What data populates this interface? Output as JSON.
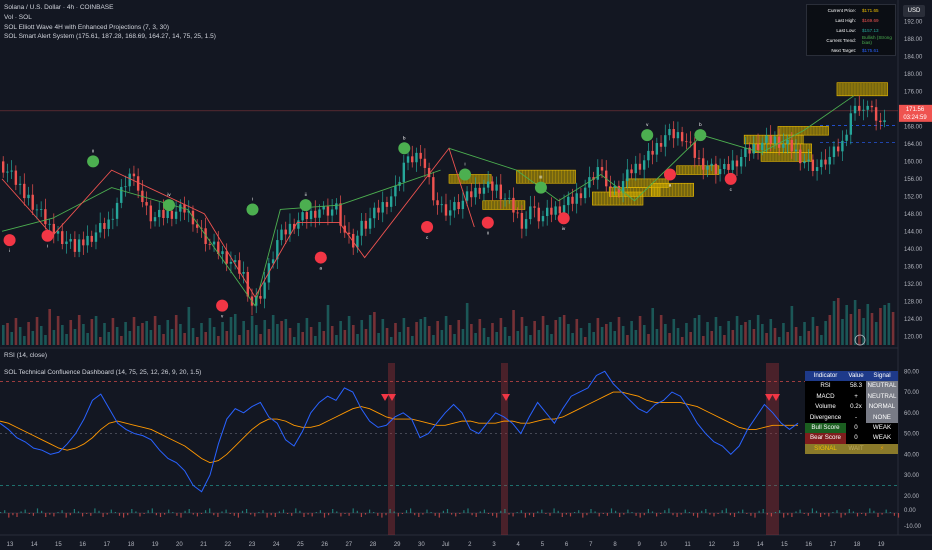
{
  "legend": {
    "symbol": "Solana / U.S. Dollar · 4h · COINBASE",
    "vol": "Vol · SOL",
    "ind1": "SOL Elliott Wave 4H with Enhanced Projections (7, 3, 30)",
    "ind2": "SOL Smart Alert System (175.61, 187.28, 168.69, 164.27, 14, 75, 25, 1.5)",
    "rsi": "RSI (14, close)",
    "dash": "SOL Technical Confluence Dashboard (14, 75, 25, 12, 26, 9, 20, 1.5)"
  },
  "currency": "USD",
  "info_box": [
    {
      "key": "Current Price:",
      "value": "$171.65",
      "color": "#f0c000"
    },
    {
      "key": "Last High:",
      "value": "$169.69",
      "color": "#ef5350"
    },
    {
      "key": "Last Low:",
      "value": "$157.13",
      "color": "#26a69a"
    },
    {
      "key": "Current Trend:",
      "value": "Bullish (Strong bias)",
      "color": "#4caf50"
    },
    {
      "key": "Next Target:",
      "value": "$175.61",
      "color": "#2962ff"
    }
  ],
  "price_tags": {
    "price": "171.56",
    "countdown": "03:24:59"
  },
  "dashboard": {
    "header": [
      "Indicator",
      "Value",
      "Signal"
    ],
    "rows": [
      {
        "label": "RSI",
        "value": "58.3",
        "signal": "NEUTRAL",
        "labelBg": "#000000",
        "sigBg": "#787b86"
      },
      {
        "label": "MACD",
        "value": "+",
        "signal": "NEUTRAL",
        "labelBg": "#000000",
        "sigBg": "#787b86"
      },
      {
        "label": "Volume",
        "value": "0.2x",
        "signal": "NORMAL",
        "labelBg": "#000000",
        "sigBg": "#787b86"
      },
      {
        "label": "Divergence",
        "value": "-",
        "signal": "NONE",
        "labelBg": "#000000",
        "sigBg": "#787b86"
      },
      {
        "label": "Bull Score",
        "value": "0",
        "signal": "WEAK",
        "labelBg": "#1b5e20",
        "sigBg": "#000000"
      },
      {
        "label": "Bear Score",
        "value": "0",
        "signal": "WEAK",
        "labelBg": "#7f1d1d",
        "sigBg": "#000000"
      },
      {
        "label": "SIGNAL",
        "value": "WAIT",
        "signal": "⚡",
        "labelBg": "#8a7a2a",
        "sigBg": "#8a7a2a"
      }
    ]
  },
  "chart_data": {
    "type": "line",
    "price_axis": {
      "ylim": [
        118,
        196
      ],
      "ticks": [
        "120.00",
        "124.00",
        "128.00",
        "132.00",
        "136.00",
        "140.00",
        "144.00",
        "148.00",
        "152.00",
        "156.00",
        "160.00",
        "164.00",
        "168.00",
        "172.00",
        "176.00",
        "180.00",
        "184.00",
        "188.00",
        "192.00"
      ]
    },
    "rsi_axis": {
      "ylim": [
        18,
        84
      ],
      "ticks": [
        "20.00",
        "30.00",
        "40.00",
        "50.00",
        "60.00",
        "70.00",
        "80.00"
      ],
      "overbought": 75,
      "oversold": 25
    },
    "hist_axis": {
      "ticks": [
        "0.00",
        "-10.00"
      ]
    },
    "x_labels": [
      "13",
      "14",
      "15",
      "16",
      "17",
      "18",
      "19",
      "20",
      "21",
      "22",
      "23",
      "24",
      "25",
      "26",
      "27",
      "28",
      "29",
      "30",
      "Jul",
      "2",
      "3",
      "4",
      "5",
      "6",
      "7",
      "8",
      "9",
      "10",
      "11",
      "12",
      "13",
      "14",
      "15",
      "16",
      "17",
      "18",
      "19"
    ],
    "price_path": [
      [
        0,
        160
      ],
      [
        3,
        153
      ],
      [
        6,
        145
      ],
      [
        9,
        140
      ],
      [
        11,
        143
      ],
      [
        13,
        146
      ],
      [
        15,
        155
      ],
      [
        16,
        158
      ],
      [
        17,
        150
      ],
      [
        18,
        147
      ],
      [
        20,
        148
      ],
      [
        22,
        149
      ],
      [
        23,
        147
      ],
      [
        25,
        141
      ],
      [
        27,
        138
      ],
      [
        29,
        134
      ],
      [
        30,
        127
      ],
      [
        31,
        130
      ],
      [
        33,
        142
      ],
      [
        35,
        146
      ],
      [
        37,
        148
      ],
      [
        38,
        149
      ],
      [
        40,
        149
      ],
      [
        41,
        143
      ],
      [
        42,
        141
      ],
      [
        43,
        145
      ],
      [
        45,
        149
      ],
      [
        47,
        153
      ],
      [
        48,
        159
      ],
      [
        50,
        162
      ],
      [
        51,
        155
      ],
      [
        52,
        150
      ],
      [
        53,
        149
      ],
      [
        55,
        151
      ],
      [
        57,
        154
      ],
      [
        59,
        154
      ],
      [
        61,
        149
      ],
      [
        62,
        146
      ],
      [
        63,
        149
      ],
      [
        64,
        147
      ],
      [
        66,
        149
      ],
      [
        68,
        151
      ],
      [
        70,
        155
      ],
      [
        71,
        158
      ],
      [
        72,
        155
      ],
      [
        73,
        153
      ],
      [
        75,
        158
      ],
      [
        77,
        161
      ],
      [
        79,
        166
      ],
      [
        81,
        166
      ],
      [
        83,
        160
      ],
      [
        84,
        159
      ],
      [
        86,
        158
      ],
      [
        88,
        161
      ],
      [
        90,
        164
      ],
      [
        92,
        165
      ],
      [
        94,
        163
      ],
      [
        96,
        159
      ],
      [
        97,
        158
      ],
      [
        98,
        160
      ],
      [
        100,
        164
      ],
      [
        101,
        171
      ],
      [
        102,
        173
      ],
      [
        103,
        172
      ],
      [
        104,
        170
      ],
      [
        105,
        168
      ]
    ],
    "ew_lines": [
      [
        [
          0,
          144
        ],
        [
          6,
          147
        ],
        [
          13,
          154
        ],
        [
          22,
          149
        ],
        [
          30,
          127
        ],
        [
          33,
          149
        ],
        [
          40,
          150
        ],
        [
          52,
          158
        ]
      ],
      [
        [
          0,
          156
        ],
        [
          6,
          143
        ],
        [
          13,
          158
        ],
        [
          24,
          148
        ],
        [
          30,
          129
        ],
        [
          35,
          146
        ],
        [
          40,
          146
        ],
        [
          43,
          138
        ],
        [
          53,
          163
        ],
        [
          56,
          145
        ]
      ],
      [
        [
          53,
          163
        ],
        [
          61,
          158
        ],
        [
          66,
          151
        ],
        [
          71,
          157
        ],
        [
          75,
          151
        ],
        [
          83,
          166
        ],
        [
          90,
          162
        ],
        [
          95,
          167
        ],
        [
          101,
          175
        ]
      ]
    ],
    "wave_points": [
      {
        "i": 1,
        "y": 142,
        "c": "#f23645",
        "lbl": "i"
      },
      {
        "i": 6,
        "y": 143,
        "c": "#f23645",
        "lbl": "i"
      },
      {
        "i": 12,
        "y": 160,
        "c": "#4caf50",
        "lbl": "ii"
      },
      {
        "i": 22,
        "y": 150,
        "c": "#4caf50",
        "lbl": "iv"
      },
      {
        "i": 29,
        "y": 127,
        "c": "#f23645",
        "lbl": "v"
      },
      {
        "i": 33,
        "y": 149,
        "c": "#4caf50",
        "lbl": "i"
      },
      {
        "i": 40,
        "y": 150,
        "c": "#4caf50",
        "lbl": "ii"
      },
      {
        "i": 42,
        "y": 138,
        "c": "#f23645",
        "lbl": "a"
      },
      {
        "i": 53,
        "y": 163,
        "c": "#4caf50",
        "lbl": "b"
      },
      {
        "i": 56,
        "y": 145,
        "c": "#f23645",
        "lbl": "c"
      },
      {
        "i": 61,
        "y": 157,
        "c": "#4caf50",
        "lbl": "i"
      },
      {
        "i": 64,
        "y": 146,
        "c": "#f23645",
        "lbl": "ii"
      },
      {
        "i": 71,
        "y": 154,
        "c": "#4caf50",
        "lbl": "iii"
      },
      {
        "i": 74,
        "y": 147,
        "c": "#f23645",
        "lbl": "iv"
      },
      {
        "i": 85,
        "y": 166,
        "c": "#4caf50",
        "lbl": "v"
      },
      {
        "i": 88,
        "y": 157,
        "c": "#f23645",
        "lbl": "a"
      },
      {
        "i": 92,
        "y": 166,
        "c": "#4caf50",
        "lbl": "b"
      },
      {
        "i": 96,
        "y": 156,
        "c": "#f23645",
        "lbl": "c"
      }
    ],
    "zones": [
      [
        53,
        155,
        58,
        157
      ],
      [
        57,
        149,
        62,
        151
      ],
      [
        61,
        155,
        68,
        158
      ],
      [
        70,
        150,
        76,
        153
      ],
      [
        72,
        152,
        78,
        154
      ],
      [
        74,
        154,
        79,
        156
      ],
      [
        77,
        152,
        82,
        155
      ],
      [
        80,
        157,
        85,
        159
      ],
      [
        88,
        164,
        95,
        166
      ],
      [
        89,
        162,
        96,
        164
      ],
      [
        90,
        160,
        96,
        162
      ],
      [
        92,
        166,
        98,
        168
      ],
      [
        99,
        175,
        105,
        178
      ]
    ],
    "rsi": [
      55,
      52,
      48,
      46,
      43,
      42,
      40,
      41,
      45,
      50,
      57,
      66,
      69,
      62,
      55,
      52,
      50,
      49,
      47,
      42,
      38,
      36,
      32,
      25,
      22,
      30,
      45,
      57,
      62,
      60,
      63,
      65,
      58,
      55,
      47,
      44,
      51,
      60,
      65,
      68,
      66,
      72,
      70,
      62,
      56,
      53,
      54,
      58,
      60,
      57,
      48,
      50,
      55,
      60,
      64,
      60,
      52,
      50,
      55,
      60,
      58,
      55,
      50,
      58,
      65,
      60,
      55,
      62,
      68,
      70,
      72,
      78,
      80,
      74,
      70,
      66,
      62,
      60,
      64,
      66,
      70,
      68,
      62,
      55,
      50,
      46,
      44,
      40,
      44,
      52,
      58,
      64,
      60,
      55,
      52,
      55
    ],
    "rsi_ma": [
      56,
      55,
      53,
      51,
      49,
      47,
      45,
      43,
      42,
      43,
      45,
      48,
      52,
      55,
      56,
      55,
      54,
      53,
      52,
      50,
      48,
      46,
      44,
      41,
      38,
      36,
      37,
      40,
      44,
      48,
      52,
      55,
      57,
      57,
      56,
      54,
      53,
      53,
      54,
      56,
      58,
      60,
      62,
      63,
      62,
      60,
      58,
      57,
      57,
      57,
      56,
      55,
      54,
      54,
      55,
      56,
      56,
      55,
      55,
      55,
      56,
      56,
      55,
      55,
      56,
      57,
      57,
      58,
      60,
      62,
      64,
      66,
      68,
      70,
      70,
      69,
      68,
      66,
      65,
      65,
      65,
      65,
      64,
      63,
      61,
      59,
      57,
      55,
      53,
      52,
      52,
      53,
      54,
      54,
      54,
      54
    ],
    "signal_bars": [
      [
        388,
        395
      ],
      [
        501,
        508
      ],
      [
        766,
        779
      ]
    ],
    "triangles": [
      385,
      392,
      506,
      769,
      776
    ]
  }
}
